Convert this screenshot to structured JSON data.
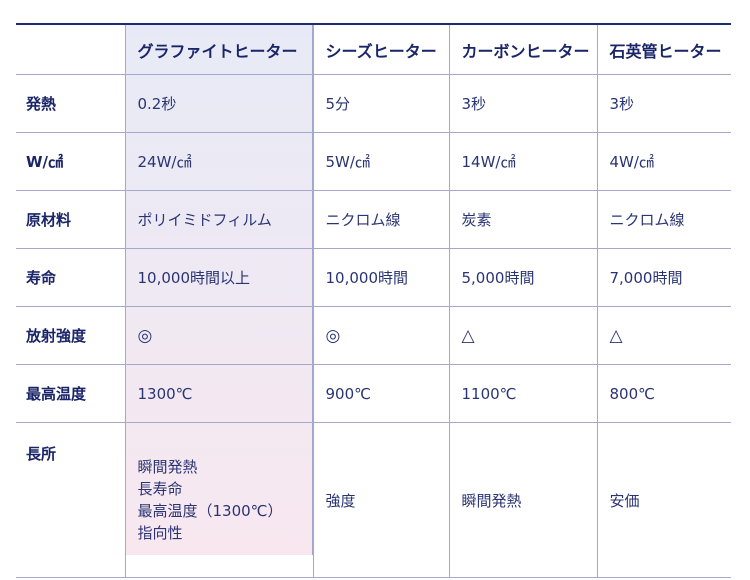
{
  "table": {
    "headers": [
      "",
      "グラファイトヒーター",
      "シーズヒーター",
      "カーボンヒーター",
      "石英管ヒーター"
    ],
    "rows": [
      {
        "label": "発熱",
        "cells": [
          "0.2秒",
          "5分",
          "3秒",
          "3秒"
        ]
      },
      {
        "label": "W/㎠",
        "cells": [
          "24W/㎠",
          "5W/㎠",
          "14W/㎠",
          "4W/㎠"
        ]
      },
      {
        "label": "原材料",
        "cells": [
          "ポリイミドフィルム",
          "ニクロム線",
          "炭素",
          "ニクロム線"
        ]
      },
      {
        "label": "寿命",
        "cells": [
          "10,000時間以上",
          "10,000時間",
          "5,000時間",
          "7,000時間"
        ]
      },
      {
        "label": "放射強度",
        "cells": [
          "◎",
          "◎",
          "△",
          "△"
        ]
      },
      {
        "label": "最高温度",
        "cells": [
          "1300℃",
          "900℃",
          "1100℃",
          "800℃"
        ]
      },
      {
        "label": "長所",
        "cells": [
          [
            "瞬間発熱",
            "長寿命",
            "最高温度（1300℃）",
            "指向性"
          ],
          "強度",
          "瞬間発熱",
          "安価"
        ]
      }
    ]
  },
  "colors": {
    "header_text": "#1a2568",
    "highlight_top": "#e7eaf6",
    "highlight_bottom": "#f8e7ef",
    "grid": "#a4a9cc"
  }
}
